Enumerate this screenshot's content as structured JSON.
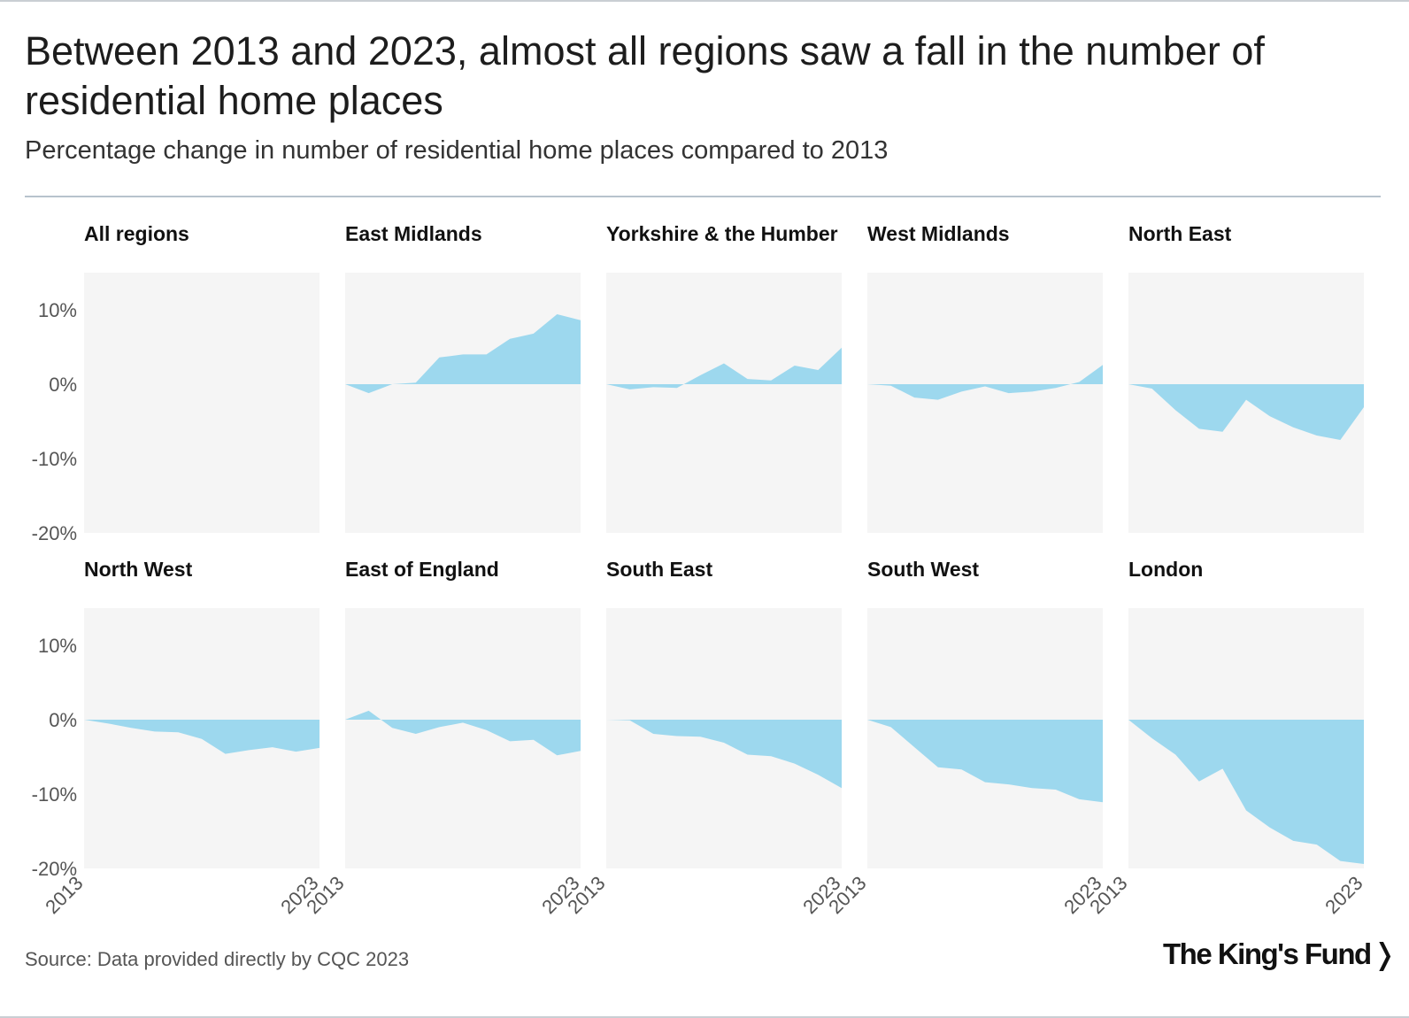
{
  "title": "Between 2013 and 2023, almost all regions saw a fall in the number of residential home places",
  "subtitle": "Percentage change in number of residential home places compared to 2013",
  "source": "Source: Data provided directly by CQC 2023",
  "logo": "The King's Fund",
  "logo_chevron": "❭",
  "colors": {
    "area": "#9dd8ee",
    "panel_bg": "#f5f5f5",
    "axis_text": "#555555",
    "rule": "#b7c3cd"
  },
  "chart_data": {
    "type": "area",
    "layout": "small-multiples 2x5",
    "x": [
      2013,
      2014,
      2015,
      2016,
      2017,
      2018,
      2019,
      2020,
      2021,
      2022,
      2023
    ],
    "x_tick_labels": [
      "2013",
      "2023"
    ],
    "ylim": [
      -20,
      15
    ],
    "y_ticks": [
      10,
      0,
      -10,
      -20
    ],
    "y_tick_labels": [
      "10%",
      "0%",
      "-10%",
      "-20%"
    ],
    "grid": false,
    "panels": [
      {
        "name": "All regions",
        "values": []
      },
      {
        "name": "East Midlands",
        "values": [
          0,
          -1.2,
          0,
          0.2,
          3.6,
          4,
          4,
          6.1,
          6.8,
          9.4,
          8.6
        ]
      },
      {
        "name": "Yorkshire & the Humber",
        "values": [
          0,
          -0.7,
          -0.4,
          -0.5,
          1.2,
          2.8,
          0.7,
          0.5,
          2.5,
          1.9,
          4.9
        ]
      },
      {
        "name": "West Midlands",
        "values": [
          0,
          -0.2,
          -1.8,
          -2.1,
          -1,
          -0.3,
          -1.2,
          -1,
          -0.5,
          0.3,
          2.6
        ]
      },
      {
        "name": "North East",
        "values": [
          0,
          -0.6,
          -3.5,
          -6,
          -6.4,
          -2.1,
          -4.3,
          -5.8,
          -6.9,
          -7.5,
          -3.1
        ]
      },
      {
        "name": "North West",
        "values": [
          0,
          -0.5,
          -1.1,
          -1.6,
          -1.7,
          -2.6,
          -4.6,
          -4.1,
          -3.7,
          -4.3,
          -3.8
        ]
      },
      {
        "name": "East of England",
        "values": [
          0,
          1.2,
          -1.1,
          -1.9,
          -1,
          -0.4,
          -1.4,
          -2.9,
          -2.7,
          -4.8,
          -4.2
        ]
      },
      {
        "name": "South East",
        "values": [
          0,
          -0.1,
          -1.9,
          -2.2,
          -2.3,
          -3.1,
          -4.7,
          -4.9,
          -5.9,
          -7.4,
          -9.2
        ]
      },
      {
        "name": "South West",
        "values": [
          0,
          -1,
          -3.7,
          -6.4,
          -6.7,
          -8.4,
          -8.7,
          -9.2,
          -9.4,
          -10.7,
          -11.1
        ]
      },
      {
        "name": "London",
        "values": [
          0,
          -2.5,
          -4.7,
          -8.3,
          -6.6,
          -12.2,
          -14.5,
          -16.3,
          -16.8,
          -19,
          -19.4
        ]
      }
    ]
  }
}
